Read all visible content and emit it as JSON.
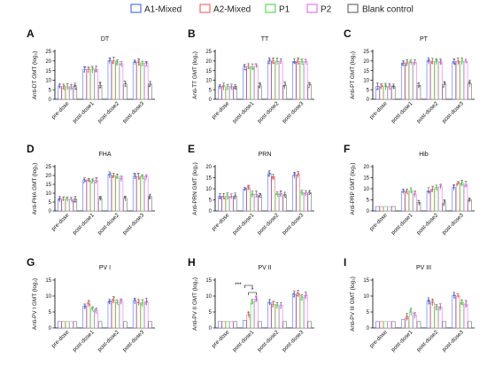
{
  "legend": [
    {
      "label": "A1-Mixed",
      "color": "#5b6ee0"
    },
    {
      "label": "A2-Mixed",
      "color": "#e87070"
    },
    {
      "label": "P1",
      "color": "#5fd45f"
    },
    {
      "label": "P2",
      "color": "#e07ae8"
    },
    {
      "label": "Blank control",
      "color": "#6e6e6e"
    }
  ],
  "chart_data": [
    {
      "panel": "A",
      "type": "bar",
      "title": "DT",
      "ylabel": "Anti-DT GMT (log₂)",
      "categories": [
        "pre-dose",
        "post-dose1",
        "post-dose2",
        "post-dose3"
      ],
      "ylim": [
        0,
        25
      ],
      "yticks": [
        0,
        5,
        10,
        15,
        20,
        25
      ],
      "series": [
        {
          "name": "A1-Mixed",
          "values": [
            6.6,
            15.5,
            20.0,
            19.2
          ]
        },
        {
          "name": "A2-Mixed",
          "values": [
            6.6,
            15.6,
            20.2,
            19.3
          ]
        },
        {
          "name": "P1",
          "values": [
            6.6,
            15.4,
            19.5,
            18.9
          ]
        },
        {
          "name": "P2",
          "values": [
            6.6,
            15.6,
            18.5,
            18.8
          ]
        },
        {
          "name": "Blank control",
          "values": [
            6.6,
            7.2,
            8.0,
            8.0
          ]
        }
      ]
    },
    {
      "panel": "B",
      "type": "bar",
      "title": "TT",
      "ylabel": "Anti-TT GMT  (log₂)",
      "categories": [
        "pre-dose",
        "post-dose1",
        "post-dose2",
        "post-dose3"
      ],
      "ylim": [
        0,
        25
      ],
      "yticks": [
        0,
        5,
        10,
        15,
        20,
        25
      ],
      "series": [
        {
          "name": "A1-Mixed",
          "values": [
            6.6,
            16.8,
            20.0,
            19.7
          ]
        },
        {
          "name": "A2-Mixed",
          "values": [
            6.6,
            17.2,
            20.0,
            19.8
          ]
        },
        {
          "name": "P1",
          "values": [
            6.6,
            17.0,
            19.8,
            19.6
          ]
        },
        {
          "name": "P2",
          "values": [
            6.6,
            17.4,
            19.9,
            19.7
          ]
        },
        {
          "name": "Blank control",
          "values": [
            6.6,
            7.0,
            7.2,
            7.5
          ]
        }
      ]
    },
    {
      "panel": "C",
      "type": "bar",
      "title": "PT",
      "ylabel": "Anti-PT GMT  (log₂)",
      "categories": [
        "pre-dose",
        "post-dose1",
        "post-dose2",
        "post-dose3"
      ],
      "ylim": [
        0,
        25
      ],
      "yticks": [
        0,
        5,
        10,
        15,
        20,
        25
      ],
      "series": [
        {
          "name": "A1-Mixed",
          "values": [
            6.6,
            18.8,
            20.0,
            19.7
          ]
        },
        {
          "name": "A2-Mixed",
          "values": [
            6.6,
            19.0,
            19.8,
            19.8
          ]
        },
        {
          "name": "P1",
          "values": [
            6.6,
            19.2,
            19.6,
            19.8
          ]
        },
        {
          "name": "P2",
          "values": [
            6.6,
            19.3,
            19.6,
            19.8
          ]
        },
        {
          "name": "Blank control",
          "values": [
            6.6,
            7.2,
            7.8,
            8.2
          ]
        }
      ]
    },
    {
      "panel": "D",
      "type": "bar",
      "title": "FHA",
      "ylabel": "Anti-FHA GMT (log₂)",
      "categories": [
        "pre-dose",
        "post-dose1",
        "post-dose2",
        "post-dose3"
      ],
      "ylim": [
        0,
        25
      ],
      "yticks": [
        0,
        5,
        10,
        15,
        20,
        25
      ],
      "series": [
        {
          "name": "A1-Mixed",
          "values": [
            6.6,
            17.5,
            20.3,
            19.6
          ]
        },
        {
          "name": "A2-Mixed",
          "values": [
            6.6,
            17.3,
            20.0,
            19.4
          ]
        },
        {
          "name": "P1",
          "values": [
            6.6,
            17.0,
            19.6,
            19.3
          ]
        },
        {
          "name": "P2",
          "values": [
            6.6,
            17.2,
            18.2,
            19.2
          ]
        },
        {
          "name": "Blank control",
          "values": [
            6.6,
            7.0,
            7.2,
            8.0
          ]
        }
      ]
    },
    {
      "panel": "E",
      "type": "bar",
      "title": "PRN",
      "ylabel": "Anti-PRN GMT (log₂)",
      "categories": [
        "pre-dose",
        "post-dose1",
        "post-dose2",
        "post-dose3"
      ],
      "ylim": [
        0,
        20
      ],
      "yticks": [
        0,
        5,
        10,
        15,
        20
      ],
      "series": [
        {
          "name": "A1-Mixed",
          "values": [
            6.6,
            9.8,
            16.8,
            16.0
          ]
        },
        {
          "name": "A2-Mixed",
          "values": [
            6.6,
            10.5,
            15.5,
            16.3
          ]
        },
        {
          "name": "P1",
          "values": [
            6.6,
            7.6,
            7.8,
            8.2
          ]
        },
        {
          "name": "P2",
          "values": [
            6.6,
            7.5,
            7.8,
            8.2
          ]
        },
        {
          "name": "Blank control",
          "values": [
            6.6,
            7.0,
            7.2,
            8.2
          ]
        }
      ]
    },
    {
      "panel": "F",
      "type": "bar",
      "title": "Hib",
      "ylabel": "Anti-PRP GMT  (log₂)",
      "categories": [
        "pre-dose",
        "post-dose1",
        "post-dose2",
        "post-dose3"
      ],
      "ylim": [
        0,
        20
      ],
      "yticks": [
        0,
        5,
        10,
        15,
        20
      ],
      "series": [
        {
          "name": "A1-Mixed",
          "values": [
            2.0,
            8.8,
            9.0,
            10.5
          ]
        },
        {
          "name": "A2-Mixed",
          "values": [
            2.0,
            9.0,
            9.8,
            12.5
          ]
        },
        {
          "name": "P1",
          "values": [
            2.0,
            9.2,
            10.5,
            12.5
          ]
        },
        {
          "name": "P2",
          "values": [
            2.0,
            7.5,
            11.0,
            12.0
          ]
        },
        {
          "name": "Blank control",
          "values": [
            2.0,
            3.8,
            3.6,
            5.0
          ]
        }
      ]
    },
    {
      "panel": "G",
      "type": "bar",
      "title": "PV I",
      "ylabel": "Anti-PV I GMT  (log₂)",
      "categories": [
        "pre-dose",
        "post-dose1",
        "post-dose2",
        "post-dose3"
      ],
      "ylim": [
        0,
        15
      ],
      "yticks": [
        0,
        5,
        10,
        15
      ],
      "series": [
        {
          "name": "A1-Mixed",
          "values": [
            2.0,
            6.8,
            8.2,
            8.5
          ]
        },
        {
          "name": "A2-Mixed",
          "values": [
            2.0,
            7.6,
            8.8,
            8.0
          ]
        },
        {
          "name": "P1",
          "values": [
            2.0,
            6.0,
            8.0,
            7.8
          ]
        },
        {
          "name": "P2",
          "values": [
            2.0,
            5.4,
            8.4,
            8.2
          ]
        },
        {
          "name": "Blank control",
          "values": [
            2.0,
            2.0,
            2.0,
            2.0
          ]
        }
      ]
    },
    {
      "panel": "H",
      "type": "bar",
      "title": "PV II",
      "ylabel": "Anti-PV II GMT (log₂)",
      "categories": [
        "pre-dose",
        "post-dose1",
        "post-dose2",
        "post-dose3"
      ],
      "ylim": [
        0,
        15
      ],
      "yticks": [
        0,
        5,
        10,
        15
      ],
      "annotations": [
        "***",
        "*"
      ],
      "series": [
        {
          "name": "A1-Mixed",
          "values": [
            2.0,
            2.4,
            8.0,
            10.5
          ]
        },
        {
          "name": "A2-Mixed",
          "values": [
            2.0,
            4.2,
            7.4,
            10.8
          ]
        },
        {
          "name": "P1",
          "values": [
            2.0,
            8.2,
            7.0,
            9.5
          ]
        },
        {
          "name": "P2",
          "values": [
            2.0,
            9.0,
            7.0,
            10.2
          ]
        },
        {
          "name": "Blank control",
          "values": [
            2.0,
            2.0,
            2.0,
            2.0
          ]
        }
      ]
    },
    {
      "panel": "I",
      "type": "bar",
      "title": "PV III",
      "ylabel": "Anti-PV III GMT  (log₂)",
      "categories": [
        "pre-dose",
        "post-dose1",
        "post-dose2",
        "post-dose3"
      ],
      "ylim": [
        0,
        15
      ],
      "yticks": [
        0,
        5,
        10,
        15
      ],
      "series": [
        {
          "name": "A1-Mixed",
          "values": [
            2.0,
            2.6,
            8.4,
            10.2
          ]
        },
        {
          "name": "A2-Mixed",
          "values": [
            2.0,
            3.4,
            8.0,
            10.0
          ]
        },
        {
          "name": "P1",
          "values": [
            2.0,
            5.0,
            6.5,
            8.0
          ]
        },
        {
          "name": "P2",
          "values": [
            2.0,
            4.0,
            6.5,
            7.5
          ]
        },
        {
          "name": "Blank control",
          "values": [
            2.0,
            2.0,
            2.0,
            2.0
          ]
        }
      ]
    }
  ]
}
